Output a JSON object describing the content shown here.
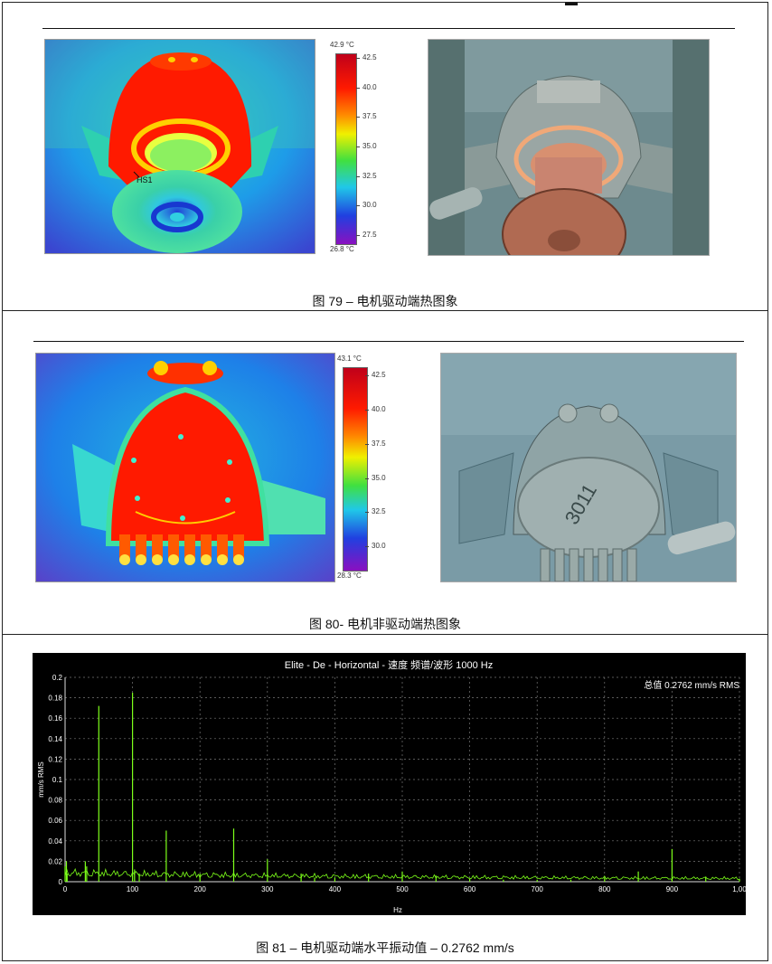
{
  "fig79": {
    "caption": "图 79 – 电机驱动端热图象",
    "scale_top": "42.9 °C",
    "scale_bottom": "26.8 °C",
    "ticks": [
      "42.5",
      "40.0",
      "37.5",
      "35.0",
      "32.5",
      "30.0",
      "27.5"
    ],
    "hotspot_label": "HS1"
  },
  "fig80": {
    "caption": "图 80- 电机非驱动端热图象",
    "scale_top": "43.1 °C",
    "scale_bottom": "28.3 °C",
    "ticks": [
      "42.5",
      "40.0",
      "37.5",
      "35.0",
      "32.5",
      "30.0"
    ],
    "photo_marking": "3011"
  },
  "fig81": {
    "caption": "图 81 – 电机驱动端水平振动值 – 0.2762 mm/s"
  },
  "colors": {
    "thermal_hot": "#ff1a00",
    "thermal_cold": "#2a3fd8",
    "spectrum_line": "#7dff1a",
    "spectrum_bg": "#000000"
  },
  "chart_data": {
    "type": "line",
    "title": "Elite - De - Horizontal - 速度 频谱/波形 1000 Hz",
    "annotation": "总值 0.2762 mm/s RMS",
    "xlabel": "Hz",
    "ylabel": "mm/s RMS",
    "xlim": [
      0,
      1000
    ],
    "ylim": [
      0,
      0.2
    ],
    "x_ticks": [
      "0",
      "100",
      "200",
      "300",
      "400",
      "500",
      "600",
      "700",
      "800",
      "900",
      "1,00"
    ],
    "y_ticks": [
      "0",
      "0.02",
      "0.04",
      "0.06",
      "0.08",
      "0.1",
      "0.12",
      "0.14",
      "0.16",
      "0.18",
      "0.2"
    ],
    "grid": true,
    "series": [
      {
        "x": [
          0,
          2,
          3,
          30,
          32,
          50,
          100,
          103,
          110,
          150,
          200,
          250,
          300,
          350,
          370,
          400,
          450,
          500,
          550,
          600,
          650,
          700,
          750,
          800,
          850,
          900,
          950,
          1000
        ],
        "y": [
          0.015,
          0.02,
          0.008,
          0.02,
          0.015,
          0.172,
          0.185,
          0.012,
          0.008,
          0.05,
          0.008,
          0.052,
          0.022,
          0.008,
          0.004,
          0.004,
          0.008,
          0.01,
          0.006,
          0.003,
          0.002,
          0.002,
          0.002,
          0.004,
          0.01,
          0.032,
          0.005,
          0.003
        ]
      }
    ]
  }
}
